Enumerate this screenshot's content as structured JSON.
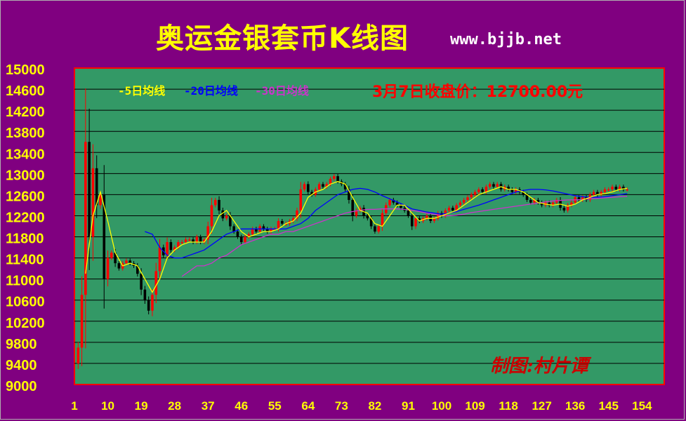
{
  "title": "奥运金银套币K线图",
  "site": "www.bjjb.net",
  "close_text": "3月7日收盘价：12700.00元",
  "credit": "制图:村片谭",
  "legend": [
    {
      "label": "-5日均线",
      "color": "#ffff00"
    },
    {
      "label": "-20日均线",
      "color": "#0000ff"
    },
    {
      "label": "-30日均线",
      "color": "#cc33cc"
    }
  ],
  "colors": {
    "background": "#800080",
    "plot": "#339966",
    "up": "#ff0000",
    "down": "#000000",
    "axis_text": "#ffff00",
    "close_text": "#ff0000"
  },
  "chart_data": {
    "type": "candlestick",
    "title": "奥运金银套币K线图",
    "ylim": [
      9000,
      15000
    ],
    "y_ticks": [
      9000,
      9400,
      9800,
      10200,
      10600,
      11000,
      11400,
      11800,
      12200,
      12600,
      13000,
      13400,
      13800,
      14200,
      14600,
      15000
    ],
    "x_ticks": [
      1,
      10,
      19,
      28,
      37,
      46,
      55,
      64,
      73,
      82,
      91,
      100,
      109,
      118,
      127,
      136,
      145,
      154
    ],
    "grid": true,
    "legend_position": "top-left",
    "series": [
      {
        "name": "-5日均线",
        "type": "ma",
        "period": 5
      },
      {
        "name": "-20日均线",
        "type": "ma",
        "period": 20
      },
      {
        "name": "-30日均线",
        "type": "ma",
        "period": 30
      }
    ],
    "close_path": [
      [
        1,
        9400
      ],
      [
        2,
        9700
      ],
      [
        3,
        10700
      ],
      [
        4,
        13600
      ],
      [
        5,
        11800
      ],
      [
        6,
        13100
      ],
      [
        7,
        12400
      ],
      [
        8,
        12600
      ],
      [
        9,
        11000
      ],
      [
        10,
        11400
      ],
      [
        11,
        11500
      ],
      [
        12,
        11300
      ],
      [
        13,
        11200
      ],
      [
        14,
        11300
      ],
      [
        15,
        11350
      ],
      [
        16,
        11300
      ],
      [
        17,
        11250
      ],
      [
        18,
        11100
      ],
      [
        19,
        10800
      ],
      [
        20,
        10600
      ],
      [
        21,
        10400
      ],
      [
        22,
        10700
      ],
      [
        23,
        11150
      ],
      [
        24,
        11600
      ],
      [
        25,
        11450
      ],
      [
        26,
        11700
      ],
      [
        27,
        11550
      ],
      [
        28,
        11600
      ],
      [
        29,
        11700
      ],
      [
        30,
        11700
      ],
      [
        31,
        11750
      ],
      [
        32,
        11750
      ],
      [
        33,
        11700
      ],
      [
        34,
        11800
      ],
      [
        35,
        11700
      ],
      [
        36,
        11750
      ],
      [
        37,
        12000
      ],
      [
        38,
        12400
      ],
      [
        39,
        12500
      ],
      [
        40,
        12300
      ],
      [
        41,
        12150
      ],
      [
        42,
        12200
      ],
      [
        43,
        12000
      ],
      [
        44,
        11900
      ],
      [
        45,
        11800
      ],
      [
        46,
        11700
      ],
      [
        47,
        11800
      ],
      [
        48,
        11850
      ],
      [
        49,
        11950
      ],
      [
        50,
        11900
      ],
      [
        51,
        12000
      ],
      [
        52,
        11950
      ],
      [
        53,
        11900
      ],
      [
        54,
        11950
      ],
      [
        55,
        11950
      ],
      [
        56,
        12100
      ],
      [
        57,
        12050
      ],
      [
        58,
        12050
      ],
      [
        59,
        12100
      ],
      [
        60,
        12150
      ],
      [
        61,
        12300
      ],
      [
        62,
        12700
      ],
      [
        63,
        12800
      ],
      [
        64,
        12650
      ],
      [
        65,
        12600
      ],
      [
        66,
        12700
      ],
      [
        67,
        12800
      ],
      [
        68,
        12750
      ],
      [
        69,
        12800
      ],
      [
        70,
        12900
      ],
      [
        71,
        12950
      ],
      [
        72,
        12850
      ],
      [
        73,
        12800
      ],
      [
        74,
        12700
      ],
      [
        75,
        12500
      ],
      [
        76,
        12200
      ],
      [
        77,
        12300
      ],
      [
        78,
        12350
      ],
      [
        79,
        12200
      ],
      [
        80,
        12150
      ],
      [
        81,
        12000
      ],
      [
        82,
        11900
      ],
      [
        83,
        12000
      ],
      [
        84,
        12250
      ],
      [
        85,
        12400
      ],
      [
        86,
        12500
      ],
      [
        87,
        12450
      ],
      [
        88,
        12400
      ],
      [
        89,
        12350
      ],
      [
        90,
        12300
      ],
      [
        91,
        12200
      ],
      [
        92,
        12000
      ],
      [
        93,
        12150
      ],
      [
        94,
        12100
      ],
      [
        95,
        12150
      ],
      [
        96,
        12200
      ],
      [
        97,
        12100
      ],
      [
        98,
        12150
      ],
      [
        99,
        12250
      ],
      [
        100,
        12200
      ],
      [
        101,
        12300
      ],
      [
        102,
        12350
      ],
      [
        103,
        12300
      ],
      [
        104,
        12400
      ],
      [
        105,
        12450
      ],
      [
        106,
        12500
      ],
      [
        107,
        12550
      ],
      [
        108,
        12600
      ],
      [
        109,
        12650
      ],
      [
        110,
        12700
      ],
      [
        111,
        12650
      ],
      [
        112,
        12750
      ],
      [
        113,
        12800
      ],
      [
        114,
        12750
      ],
      [
        115,
        12800
      ],
      [
        116,
        12700
      ],
      [
        117,
        12750
      ],
      [
        118,
        12700
      ],
      [
        119,
        12650
      ],
      [
        120,
        12700
      ],
      [
        121,
        12650
      ],
      [
        122,
        12600
      ],
      [
        123,
        12500
      ],
      [
        124,
        12450
      ],
      [
        125,
        12500
      ],
      [
        126,
        12450
      ],
      [
        127,
        12400
      ],
      [
        128,
        12450
      ],
      [
        129,
        12400
      ],
      [
        130,
        12450
      ],
      [
        131,
        12500
      ],
      [
        132,
        12350
      ],
      [
        133,
        12300
      ],
      [
        134,
        12400
      ],
      [
        135,
        12450
      ],
      [
        136,
        12550
      ],
      [
        137,
        12500
      ],
      [
        138,
        12550
      ],
      [
        139,
        12500
      ],
      [
        140,
        12600
      ],
      [
        141,
        12650
      ],
      [
        142,
        12600
      ],
      [
        143,
        12650
      ],
      [
        144,
        12700
      ],
      [
        145,
        12700
      ],
      [
        146,
        12750
      ],
      [
        147,
        12700
      ],
      [
        148,
        12750
      ],
      [
        149,
        12700
      ],
      [
        150,
        12700
      ]
    ],
    "ma5_path": [
      [
        4,
        11100
      ],
      [
        6,
        12200
      ],
      [
        8,
        12650
      ],
      [
        10,
        12100
      ],
      [
        12,
        11500
      ],
      [
        14,
        11250
      ],
      [
        16,
        11300
      ],
      [
        18,
        11250
      ],
      [
        20,
        11000
      ],
      [
        22,
        10750
      ],
      [
        24,
        11000
      ],
      [
        26,
        11400
      ],
      [
        28,
        11550
      ],
      [
        30,
        11650
      ],
      [
        32,
        11700
      ],
      [
        34,
        11700
      ],
      [
        36,
        11700
      ],
      [
        38,
        11900
      ],
      [
        40,
        12200
      ],
      [
        42,
        12300
      ],
      [
        44,
        12100
      ],
      [
        46,
        11900
      ],
      [
        48,
        11800
      ],
      [
        50,
        11850
      ],
      [
        52,
        11900
      ],
      [
        54,
        11900
      ],
      [
        56,
        11950
      ],
      [
        58,
        12050
      ],
      [
        60,
        12100
      ],
      [
        62,
        12250
      ],
      [
        64,
        12550
      ],
      [
        66,
        12650
      ],
      [
        68,
        12700
      ],
      [
        70,
        12800
      ],
      [
        72,
        12850
      ],
      [
        74,
        12800
      ],
      [
        76,
        12550
      ],
      [
        78,
        12300
      ],
      [
        80,
        12250
      ],
      [
        82,
        12050
      ],
      [
        84,
        12000
      ],
      [
        86,
        12200
      ],
      [
        88,
        12400
      ],
      [
        90,
        12400
      ],
      [
        92,
        12250
      ],
      [
        94,
        12100
      ],
      [
        96,
        12150
      ],
      [
        98,
        12150
      ],
      [
        100,
        12200
      ],
      [
        102,
        12250
      ],
      [
        104,
        12300
      ],
      [
        106,
        12400
      ],
      [
        108,
        12500
      ],
      [
        110,
        12600
      ],
      [
        112,
        12650
      ],
      [
        114,
        12700
      ],
      [
        116,
        12750
      ],
      [
        118,
        12700
      ],
      [
        120,
        12700
      ],
      [
        122,
        12650
      ],
      [
        124,
        12550
      ],
      [
        126,
        12450
      ],
      [
        128,
        12420
      ],
      [
        130,
        12400
      ],
      [
        132,
        12420
      ],
      [
        134,
        12380
      ],
      [
        136,
        12420
      ],
      [
        138,
        12500
      ],
      [
        140,
        12550
      ],
      [
        142,
        12600
      ],
      [
        144,
        12620
      ],
      [
        146,
        12650
      ],
      [
        148,
        12700
      ],
      [
        150,
        12720
      ]
    ],
    "ma20_path": [
      [
        20,
        11900
      ],
      [
        22,
        11850
      ],
      [
        24,
        11600
      ],
      [
        26,
        11450
      ],
      [
        28,
        11400
      ],
      [
        30,
        11400
      ],
      [
        32,
        11450
      ],
      [
        34,
        11500
      ],
      [
        36,
        11550
      ],
      [
        38,
        11650
      ],
      [
        40,
        11750
      ],
      [
        42,
        11850
      ],
      [
        44,
        11900
      ],
      [
        46,
        11950
      ],
      [
        48,
        11950
      ],
      [
        50,
        11950
      ],
      [
        52,
        11950
      ],
      [
        54,
        11950
      ],
      [
        56,
        11950
      ],
      [
        58,
        11950
      ],
      [
        60,
        12000
      ],
      [
        62,
        12050
      ],
      [
        64,
        12150
      ],
      [
        66,
        12300
      ],
      [
        68,
        12400
      ],
      [
        70,
        12500
      ],
      [
        72,
        12600
      ],
      [
        74,
        12650
      ],
      [
        76,
        12700
      ],
      [
        78,
        12720
      ],
      [
        80,
        12700
      ],
      [
        82,
        12650
      ],
      [
        84,
        12580
      ],
      [
        86,
        12520
      ],
      [
        88,
        12460
      ],
      [
        90,
        12400
      ],
      [
        92,
        12330
      ],
      [
        94,
        12300
      ],
      [
        96,
        12270
      ],
      [
        98,
        12250
      ],
      [
        100,
        12230
      ],
      [
        102,
        12250
      ],
      [
        104,
        12280
      ],
      [
        106,
        12320
      ],
      [
        108,
        12360
      ],
      [
        110,
        12400
      ],
      [
        112,
        12450
      ],
      [
        114,
        12500
      ],
      [
        116,
        12550
      ],
      [
        118,
        12600
      ],
      [
        120,
        12650
      ],
      [
        122,
        12680
      ],
      [
        124,
        12700
      ],
      [
        126,
        12700
      ],
      [
        128,
        12690
      ],
      [
        130,
        12670
      ],
      [
        132,
        12640
      ],
      [
        134,
        12610
      ],
      [
        136,
        12580
      ],
      [
        138,
        12560
      ],
      [
        140,
        12550
      ],
      [
        142,
        12550
      ],
      [
        144,
        12560
      ],
      [
        146,
        12580
      ],
      [
        148,
        12600
      ],
      [
        150,
        12620
      ]
    ],
    "ma30_path": [
      [
        30,
        11050
      ],
      [
        32,
        11150
      ],
      [
        34,
        11250
      ],
      [
        36,
        11250
      ],
      [
        38,
        11300
      ],
      [
        40,
        11400
      ],
      [
        42,
        11450
      ],
      [
        44,
        11550
      ],
      [
        46,
        11650
      ],
      [
        48,
        11700
      ],
      [
        50,
        11750
      ],
      [
        52,
        11800
      ],
      [
        54,
        11850
      ],
      [
        56,
        11850
      ],
      [
        58,
        11900
      ],
      [
        60,
        11900
      ],
      [
        62,
        11950
      ],
      [
        64,
        12000
      ],
      [
        66,
        12050
      ],
      [
        68,
        12100
      ],
      [
        70,
        12150
      ],
      [
        72,
        12200
      ],
      [
        74,
        12250
      ],
      [
        76,
        12280
      ],
      [
        78,
        12300
      ],
      [
        80,
        12320
      ],
      [
        82,
        12320
      ],
      [
        84,
        12330
      ],
      [
        86,
        12330
      ],
      [
        88,
        12330
      ],
      [
        90,
        12320
      ],
      [
        92,
        12300
      ],
      [
        94,
        12280
      ],
      [
        96,
        12250
      ],
      [
        98,
        12230
      ],
      [
        100,
        12200
      ],
      [
        102,
        12200
      ],
      [
        104,
        12210
      ],
      [
        106,
        12230
      ],
      [
        108,
        12260
      ],
      [
        110,
        12280
      ],
      [
        112,
        12300
      ],
      [
        114,
        12320
      ],
      [
        116,
        12340
      ],
      [
        118,
        12360
      ],
      [
        120,
        12380
      ],
      [
        122,
        12400
      ],
      [
        124,
        12420
      ],
      [
        126,
        12440
      ],
      [
        128,
        12460
      ],
      [
        130,
        12480
      ],
      [
        132,
        12490
      ],
      [
        134,
        12500
      ],
      [
        136,
        12500
      ],
      [
        138,
        12510
      ],
      [
        140,
        12520
      ],
      [
        142,
        12530
      ],
      [
        144,
        12540
      ],
      [
        146,
        12550
      ],
      [
        148,
        12560
      ],
      [
        150,
        12570
      ]
    ]
  }
}
